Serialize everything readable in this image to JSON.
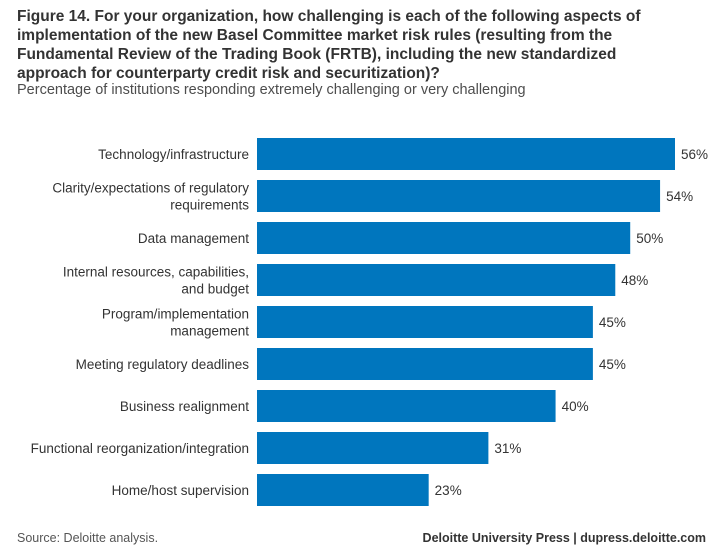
{
  "header": {
    "title": "Figure 14. For your organization, how challenging is each of the following aspects of\nimplementation of the new Basel Committee market risk rules (resulting from the\nFundamental Review of the Trading Book (FRTB), including the new standardized\napproach for counterparty credit risk and securitization)?",
    "subtitle": "Percentage of institutions responding extremely challenging or very challenging"
  },
  "chart_data": {
    "type": "bar",
    "orientation": "horizontal",
    "categories": [
      "Technology/infrastructure",
      "Clarity/expectations of regulatory requirements",
      "Data management",
      "Internal resources, capabilities, and budget",
      "Program/implementation management",
      "Meeting regulatory deadlines",
      "Business realignment",
      "Functional reorganization/integration",
      "Home/host supervision"
    ],
    "category_label_lines": [
      [
        "Technology/infrastructure"
      ],
      [
        "Clarity/expectations of regulatory",
        "requirements"
      ],
      [
        "Data management"
      ],
      [
        "Internal resources, capabilities,",
        "and budget"
      ],
      [
        "Program/implementation",
        "management"
      ],
      [
        "Meeting regulatory deadlines"
      ],
      [
        "Business realignment"
      ],
      [
        "Functional reorganization/integration"
      ],
      [
        "Home/host supervision"
      ]
    ],
    "values": [
      56,
      54,
      50,
      48,
      45,
      45,
      40,
      31,
      23
    ],
    "value_labels": [
      "56%",
      "54%",
      "50%",
      "48%",
      "45%",
      "45%",
      "40%",
      "31%",
      "23%"
    ],
    "unit": "%",
    "bar_color": "#0076be",
    "grid": false,
    "legend": "none"
  },
  "footer": {
    "source": "Source: Deloitte analysis.",
    "credit": "Deloitte University Press  |  dupress.deloitte.com"
  }
}
